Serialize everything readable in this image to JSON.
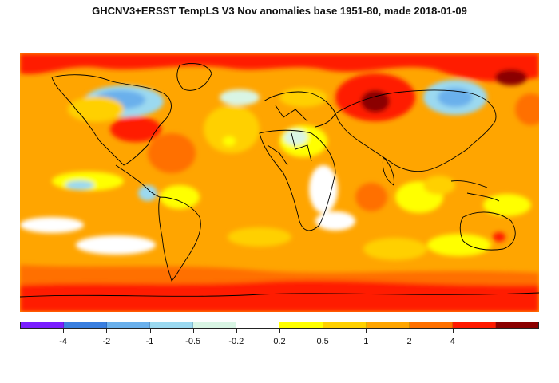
{
  "title": "GHCNV3+ERSST TempLS V3 Nov anomalies base 1951-80, made 2018-01-09",
  "legend": {
    "colors": [
      "#7a1fff",
      "#3a7fe0",
      "#6ab0ec",
      "#9bd9f0",
      "#d9f5e4",
      "#ffffff",
      "#ffff00",
      "#ffd000",
      "#ffa500",
      "#ff7000",
      "#ff1a00",
      "#8b0000"
    ],
    "labels": [
      "-4",
      "-2",
      "-1",
      "-0.5",
      "-0.2",
      "0.2",
      "0.5",
      "1",
      "2",
      "4"
    ]
  },
  "map": {
    "background_color": "#ffa500",
    "outline_color": "#000000"
  }
}
